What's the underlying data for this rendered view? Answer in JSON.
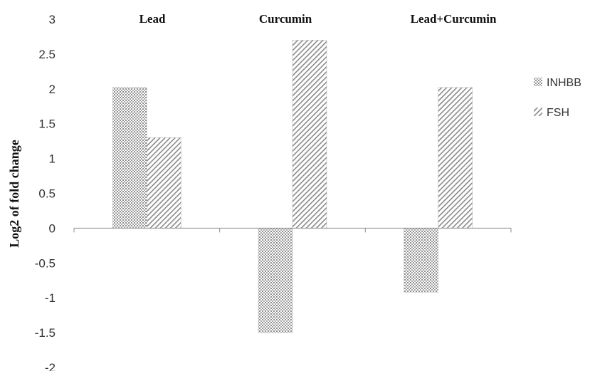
{
  "chart_data": {
    "type": "bar",
    "categories": [
      "Lead",
      "Curcumin",
      "Lead+Curcumin"
    ],
    "series": [
      {
        "name": "INHBB",
        "values": [
          2.02,
          -1.5,
          -0.92
        ],
        "pattern": "crosshatch-dots",
        "color": "#9a9a9a"
      },
      {
        "name": "FSH",
        "values": [
          1.3,
          2.7,
          2.02
        ],
        "pattern": "diagonal-stripes",
        "color": "#8a8a8a"
      }
    ],
    "ylabel": "Log2 of fold change",
    "xlabel": "",
    "ylim": [
      -2,
      3
    ],
    "yticks": [
      "3",
      "2.5",
      "2",
      "1.5",
      "1",
      "0.5",
      "0",
      "-0.5",
      "-1",
      "-1.5",
      "-2"
    ],
    "grid": false,
    "legend_position": "right"
  }
}
